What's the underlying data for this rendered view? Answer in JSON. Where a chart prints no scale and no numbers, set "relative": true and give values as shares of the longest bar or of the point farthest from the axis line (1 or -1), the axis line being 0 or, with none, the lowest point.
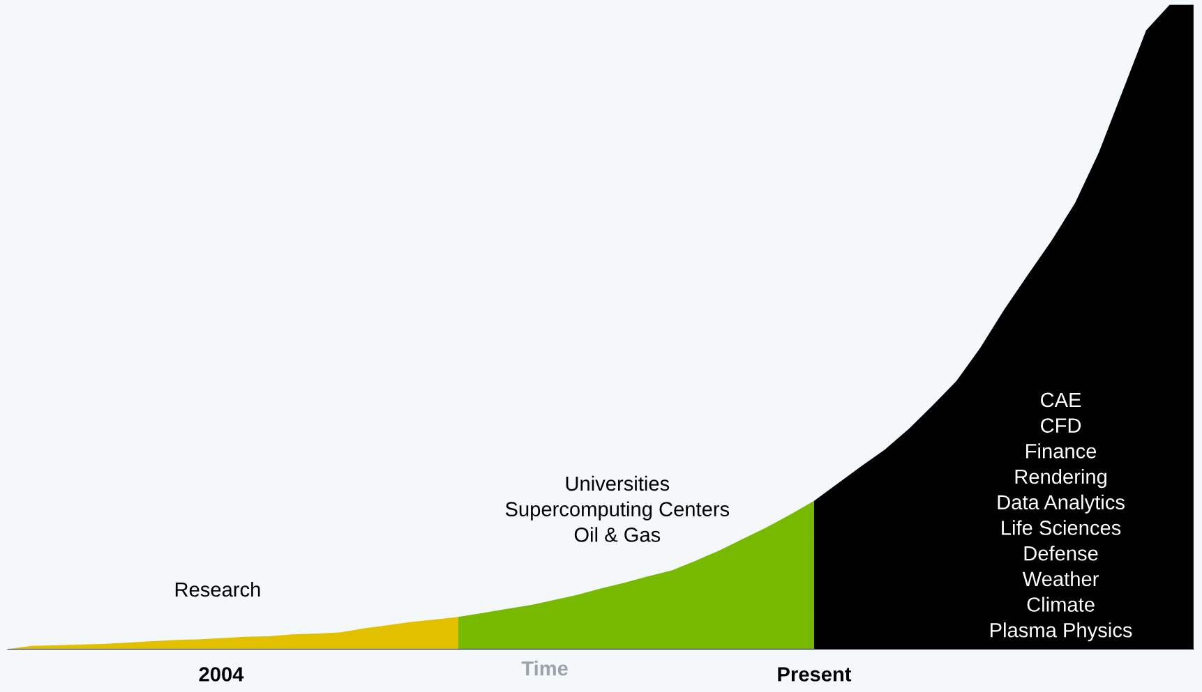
{
  "chart_data": {
    "type": "area",
    "relative": true,
    "xlabel": "Time",
    "grid": false,
    "legend": false,
    "categories": [
      null,
      null,
      null,
      null,
      null,
      null,
      null,
      null,
      null,
      "2004",
      null,
      null,
      null,
      null,
      null,
      null,
      null,
      null,
      null,
      null,
      null,
      null,
      null,
      null,
      null,
      null,
      null,
      null,
      null,
      null,
      null,
      null,
      null,
      null,
      "Present",
      null,
      null,
      null,
      null,
      null,
      null,
      null,
      null,
      null,
      null,
      null,
      null,
      null,
      null,
      null,
      null
    ],
    "series": [
      {
        "name": "Research",
        "color": "#e2c000",
        "values": [
          0,
          0.005,
          0.006,
          0.007,
          0.008,
          0.01,
          0.012,
          0.014,
          0.015,
          0.017,
          0.019,
          0.02,
          0.023,
          0.024,
          0.026,
          0.032,
          0.037,
          0.042,
          0.046,
          0.05,
          null,
          null,
          null,
          null,
          null,
          null,
          null,
          null,
          null,
          null,
          null,
          null,
          null,
          null,
          null,
          null,
          null,
          null,
          null,
          null,
          null,
          null,
          null,
          null,
          null,
          null,
          null,
          null,
          null,
          null,
          null
        ]
      },
      {
        "name": "Universities\nSupercomputing Centers\nOil & Gas",
        "color": "#76b900",
        "values": [
          null,
          null,
          null,
          null,
          null,
          null,
          null,
          null,
          null,
          null,
          null,
          null,
          null,
          null,
          null,
          null,
          null,
          null,
          null,
          0.05,
          0.056,
          0.062,
          0.068,
          0.076,
          0.084,
          0.094,
          0.103,
          0.113,
          0.122,
          0.137,
          0.153,
          0.171,
          0.189,
          0.209,
          0.23,
          null,
          null,
          null,
          null,
          null,
          null,
          null,
          null,
          null,
          null,
          null,
          null,
          null,
          null,
          null,
          null
        ]
      },
      {
        "name": "CAE\nCFD\nFinance\nRendering\nData Analytics\nLife Sciences\nDefense\nWeather\nClimate\nPlasma Physics",
        "color": "#000000",
        "values": [
          null,
          null,
          null,
          null,
          null,
          null,
          null,
          null,
          null,
          null,
          null,
          null,
          null,
          null,
          null,
          null,
          null,
          null,
          null,
          null,
          null,
          null,
          null,
          null,
          null,
          null,
          null,
          null,
          null,
          null,
          null,
          null,
          null,
          null,
          0.23,
          0.257,
          0.284,
          0.31,
          0.342,
          0.378,
          0.416,
          0.467,
          0.526,
          0.58,
          0.633,
          0.692,
          0.77,
          0.865,
          0.96,
          1,
          1
        ]
      }
    ]
  }
}
